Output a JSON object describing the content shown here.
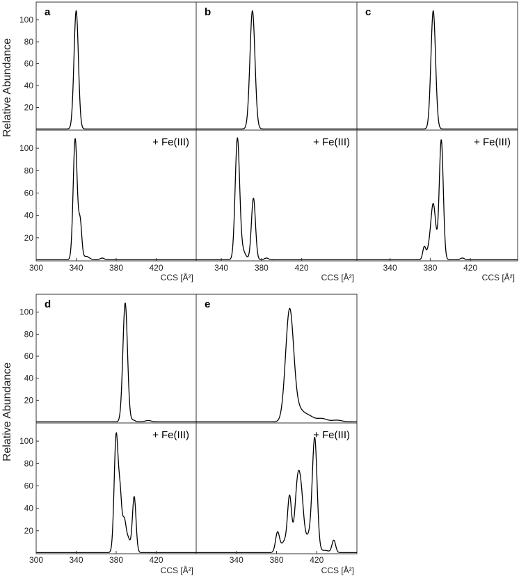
{
  "figure": {
    "y_axis_label": "Relative Abundance",
    "x_axis_label": "CCS [Å²]",
    "condition_label": "+ Fe(III)"
  },
  "colors": {
    "trace": "#000000",
    "frame": "#333333"
  },
  "chart_data": [
    {
      "type": "line",
      "panel": "a",
      "ylim": [
        0,
        115
      ],
      "xlim": [
        300,
        460
      ],
      "yticks": [
        20,
        40,
        60,
        80,
        100
      ],
      "xticks": [
        300,
        340,
        380,
        420
      ],
      "series": [
        {
          "condition": "",
          "peaks": [
            {
              "x": 340,
              "y": 108,
              "w": 2.2
            }
          ]
        },
        {
          "condition": "+ Fe(III)",
          "peaks": [
            {
              "x": 339,
              "y": 108,
              "w": 2.0
            },
            {
              "x": 344,
              "y": 33,
              "w": 1.6
            },
            {
              "x": 350,
              "y": 3,
              "w": 3
            },
            {
              "x": 366,
              "y": 1.5,
              "w": 2
            }
          ]
        }
      ]
    },
    {
      "type": "line",
      "panel": "b",
      "ylim": [
        0,
        115
      ],
      "xlim": [
        315,
        475
      ],
      "yticks": [],
      "xticks": [
        340,
        380,
        420
      ],
      "series": [
        {
          "condition": "",
          "peaks": [
            {
              "x": 371,
              "y": 108,
              "w": 2.5
            }
          ]
        },
        {
          "condition": "+ Fe(III)",
          "peaks": [
            {
              "x": 356,
              "y": 107,
              "w": 2.2
            },
            {
              "x": 361,
              "y": 8,
              "w": 3
            },
            {
              "x": 372,
              "y": 55,
              "w": 2.0
            },
            {
              "x": 385,
              "y": 1.5,
              "w": 2
            }
          ]
        }
      ]
    },
    {
      "type": "line",
      "panel": "c",
      "ylim": [
        0,
        115
      ],
      "xlim": [
        307,
        467
      ],
      "yticks": [],
      "xticks": [
        340,
        380,
        420
      ],
      "series": [
        {
          "condition": "",
          "peaks": [
            {
              "x": 383,
              "y": 108,
              "w": 2.3
            }
          ]
        },
        {
          "condition": "+ Fe(III)",
          "peaks": [
            {
              "x": 374,
              "y": 11,
              "w": 1.5
            },
            {
              "x": 383,
              "y": 50,
              "w": 2.5
            },
            {
              "x": 378,
              "y": 6,
              "w": 2
            },
            {
              "x": 391,
              "y": 107,
              "w": 2.0
            },
            {
              "x": 412,
              "y": 1.5,
              "w": 2
            }
          ]
        }
      ]
    },
    {
      "type": "line",
      "panel": "d",
      "ylim": [
        0,
        115
      ],
      "xlim": [
        300,
        460
      ],
      "yticks": [
        20,
        40,
        60,
        80,
        100
      ],
      "xticks": [
        300,
        340,
        380,
        420
      ],
      "series": [
        {
          "condition": "",
          "peaks": [
            {
              "x": 389,
              "y": 108,
              "w": 2.3
            },
            {
              "x": 397,
              "y": 1.5,
              "w": 2
            },
            {
              "x": 412,
              "y": 1.2,
              "w": 3
            }
          ]
        },
        {
          "condition": "+ Fe(III)",
          "peaks": [
            {
              "x": 380,
              "y": 105,
              "w": 2.0
            },
            {
              "x": 384,
              "y": 45,
              "w": 1.6
            },
            {
              "x": 388,
              "y": 28,
              "w": 1.8
            },
            {
              "x": 392,
              "y": 12,
              "w": 2
            },
            {
              "x": 398,
              "y": 50,
              "w": 1.8
            }
          ]
        }
      ]
    },
    {
      "type": "line",
      "panel": "e",
      "ylim": [
        0,
        115
      ],
      "xlim": [
        300,
        460
      ],
      "yticks": [],
      "xticks": [
        340,
        380,
        420
      ],
      "series": [
        {
          "condition": "",
          "peaks": [
            {
              "x": 393,
              "y": 101,
              "w": 4.0
            },
            {
              "x": 402,
              "y": 10,
              "w": 5
            },
            {
              "x": 412,
              "y": 5,
              "w": 5
            },
            {
              "x": 425,
              "y": 3,
              "w": 5
            },
            {
              "x": 440,
              "y": 1.5,
              "w": 5
            }
          ]
        },
        {
          "condition": "+ Fe(III)",
          "peaks": [
            {
              "x": 381,
              "y": 18,
              "w": 2.0
            },
            {
              "x": 388,
              "y": 10,
              "w": 3
            },
            {
              "x": 393,
              "y": 48,
              "w": 2.0
            },
            {
              "x": 401,
              "y": 60,
              "w": 2.8
            },
            {
              "x": 405,
              "y": 35,
              "w": 2.5
            },
            {
              "x": 418,
              "y": 101,
              "w": 2.4
            },
            {
              "x": 412,
              "y": 14,
              "w": 3
            },
            {
              "x": 437,
              "y": 11,
              "w": 1.8
            },
            {
              "x": 428,
              "y": 2,
              "w": 4
            }
          ]
        }
      ]
    }
  ]
}
